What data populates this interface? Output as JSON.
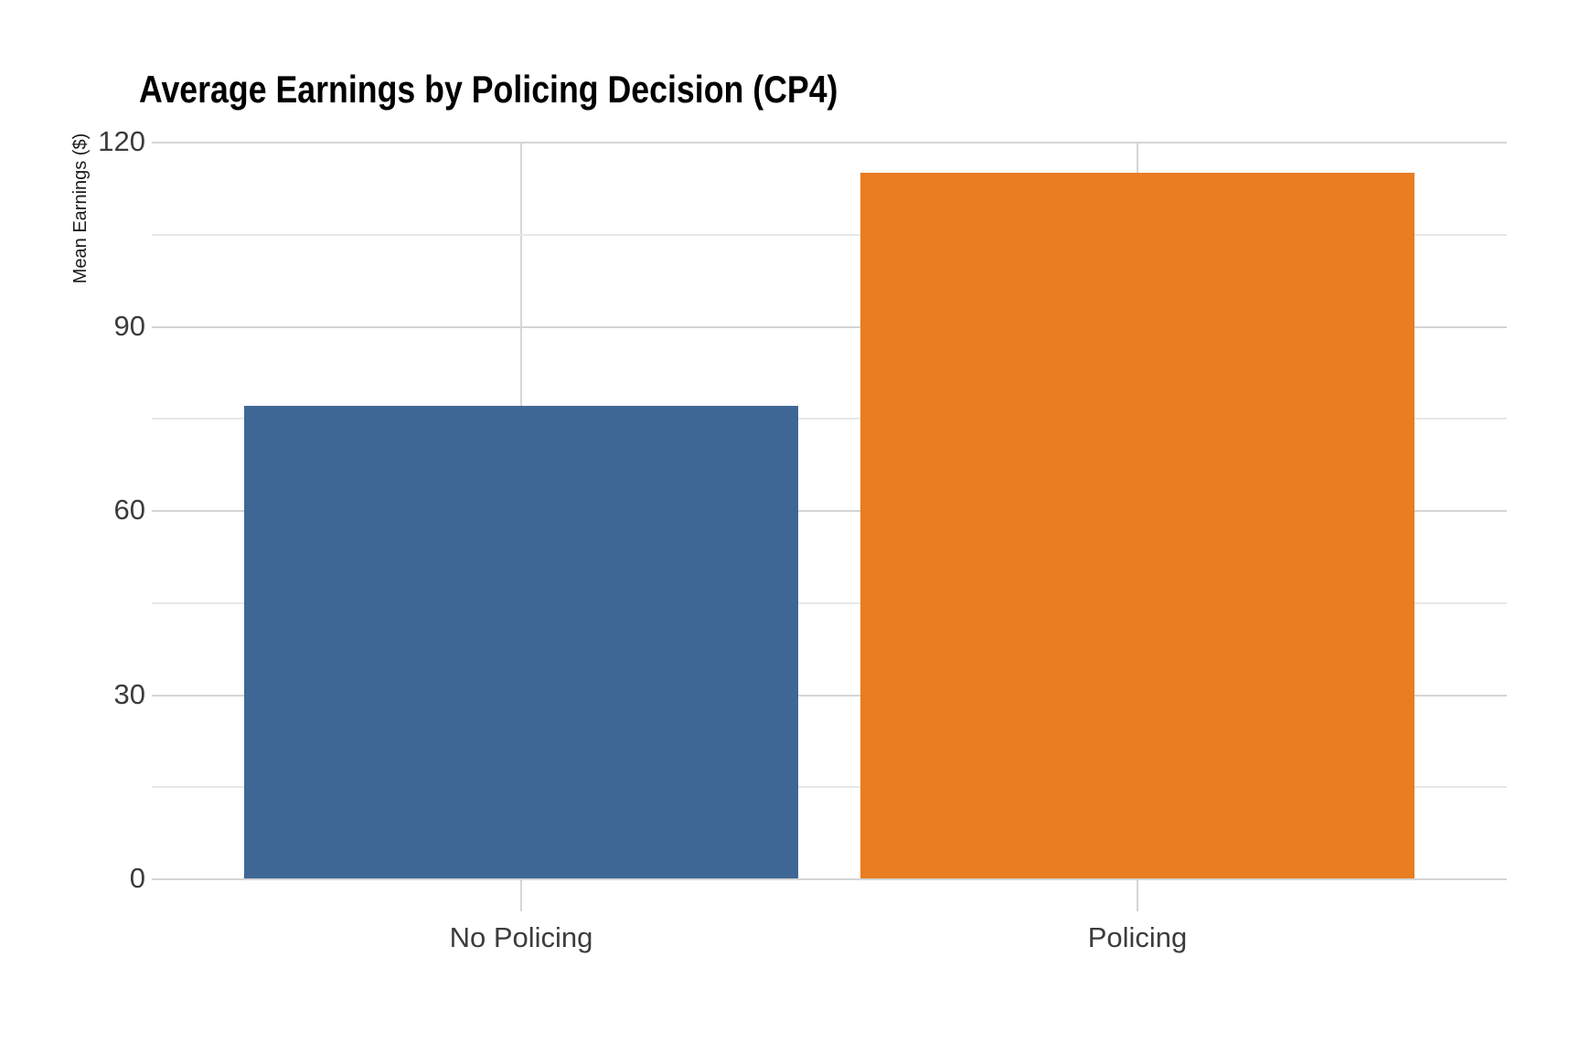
{
  "chart_data": {
    "type": "bar",
    "title": "Average Earnings by Policing Decision (CP4)",
    "ylabel": "Mean Earnings ($)",
    "xlabel": "",
    "categories": [
      "No Policing",
      "Policing"
    ],
    "values": [
      77,
      115
    ],
    "ylim": [
      0,
      120
    ],
    "yticks": [
      0,
      30,
      60,
      90,
      120
    ],
    "minor_gridlines": [
      15,
      45,
      75,
      105
    ],
    "grid": true,
    "legend_position": "none",
    "bar_colors": [
      "#3F6795",
      "#E87D22"
    ],
    "colors": {
      "major_gridline": "#d5d5d5",
      "minor_gridline": "#e8e8e8",
      "tick_label": "#3c3c3c",
      "title": "#000000",
      "background": "#ffffff"
    }
  }
}
